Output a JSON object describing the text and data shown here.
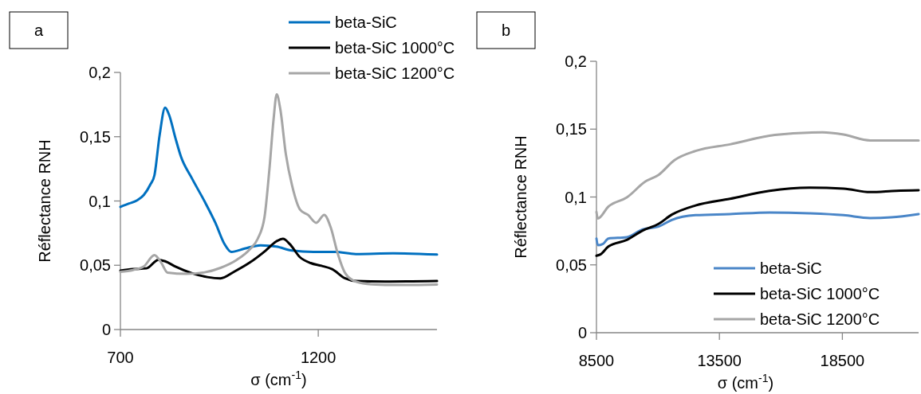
{
  "chart_data": [
    {
      "type": "line",
      "title": "a",
      "xlabel": "σ (cm$^{-1}$)",
      "ylabel": "Réflectance RNH",
      "xlim": [
        700,
        1500
      ],
      "xticks": [
        700,
        1200
      ],
      "ylim": [
        0,
        0.2
      ],
      "yticks": [
        {
          "value": 0,
          "label": "0"
        },
        {
          "value": 0.05,
          "label": "0,05"
        },
        {
          "value": 0.1,
          "label": "0,1"
        },
        {
          "value": 0.15,
          "label": "0,15"
        },
        {
          "value": 0.2,
          "label": "0,2"
        }
      ],
      "legend": "top right",
      "grid": false,
      "marker": "none",
      "line_style": "solid",
      "series": [
        {
          "name": "beta-SiC",
          "color": "#0070c0",
          "x": [
            700,
            722,
            742,
            759,
            776,
            786,
            799,
            813,
            823,
            839,
            853,
            880,
            913,
            940,
            963,
            980,
            1014,
            1054,
            1094,
            1134,
            1188,
            1242,
            1295,
            1389,
            1500
          ],
          "values": [
            0.0954,
            0.098,
            0.1005,
            0.1046,
            0.113,
            0.12,
            0.151,
            0.1726,
            0.167,
            0.149,
            0.1345,
            0.118,
            0.0995,
            0.083,
            0.0665,
            0.0604,
            0.063,
            0.0655,
            0.0645,
            0.0614,
            0.0604,
            0.0604,
            0.0587,
            0.0593,
            0.0583
          ]
        },
        {
          "name": "beta-SiC 1000°C",
          "color": "#000000",
          "x": [
            700,
            732,
            766,
            796,
            813,
            839,
            880,
            920,
            953,
            987,
            1027,
            1067,
            1094,
            1111,
            1128,
            1154,
            1181,
            1208,
            1235,
            1268,
            1295,
            1369,
            1500
          ],
          "values": [
            0.0459,
            0.047,
            0.0476,
            0.0542,
            0.0531,
            0.049,
            0.0439,
            0.0408,
            0.0398,
            0.0449,
            0.0521,
            0.0614,
            0.0686,
            0.0706,
            0.0665,
            0.0562,
            0.0517,
            0.0496,
            0.047,
            0.0398,
            0.0377,
            0.0373,
            0.0377
          ]
        },
        {
          "name": "beta-SiC 1200°C",
          "color": "#a6a6a6",
          "x": [
            700,
            732,
            759,
            786,
            803,
            819,
            866,
            913,
            953,
            994,
            1027,
            1047,
            1064,
            1077,
            1087,
            1095,
            1104,
            1118,
            1134,
            1154,
            1174,
            1195,
            1215,
            1232,
            1248,
            1268,
            1295,
            1335,
            1402,
            1500
          ],
          "values": [
            0.0449,
            0.0463,
            0.049,
            0.0579,
            0.0521,
            0.0443,
            0.0433,
            0.0445,
            0.048,
            0.0542,
            0.0624,
            0.0706,
            0.0871,
            0.1263,
            0.1633,
            0.1829,
            0.1716,
            0.1366,
            0.1118,
            0.0933,
            0.0892,
            0.083,
            0.0892,
            0.0789,
            0.0604,
            0.0439,
            0.0373,
            0.0352,
            0.0346,
            0.035
          ]
        }
      ]
    },
    {
      "type": "line",
      "title": "b",
      "xlabel": "σ (cm$^{-1}$)",
      "ylabel": "Réflectance RNH",
      "xlim": [
        8500,
        21600
      ],
      "xticks": [
        8500,
        13500,
        18500
      ],
      "ylim": [
        0,
        0.2
      ],
      "yticks": [
        {
          "value": 0,
          "label": "0"
        },
        {
          "value": 0.05,
          "label": "0,05"
        },
        {
          "value": 0.1,
          "label": "0,1"
        },
        {
          "value": 0.15,
          "label": "0,15"
        },
        {
          "value": 0.2,
          "label": "0,2"
        }
      ],
      "legend": "bottom right",
      "grid": false,
      "marker": "none",
      "line_style": "solid",
      "series": [
        {
          "name": "beta-SiC",
          "color": "#4a86c8",
          "x": [
            8500,
            8554,
            8769,
            8984,
            9736,
            10381,
            11026,
            11564,
            12531,
            13929,
            15541,
            17154,
            18551,
            19626,
            20486,
            21600
          ],
          "values": [
            0.0694,
            0.0645,
            0.0655,
            0.0694,
            0.0704,
            0.0762,
            0.0782,
            0.0831,
            0.0866,
            0.0874,
            0.0886,
            0.088,
            0.0866,
            0.0845,
            0.085,
            0.0874
          ]
        },
        {
          "name": "beta-SiC 1000°C",
          "color": "#000000",
          "x": [
            8500,
            8661,
            8984,
            9736,
            10381,
            11026,
            11564,
            12531,
            13929,
            15541,
            17154,
            18551,
            19626,
            20701,
            21600
          ],
          "values": [
            0.0567,
            0.0577,
            0.0635,
            0.0684,
            0.0753,
            0.0802,
            0.087,
            0.0938,
            0.0987,
            0.1046,
            0.1069,
            0.1062,
            0.1036,
            0.1046,
            0.105
          ]
        },
        {
          "name": "beta-SiC 1200°C",
          "color": "#a6a6a6",
          "x": [
            8500,
            8554,
            8984,
            9736,
            10489,
            11026,
            11671,
            12531,
            13929,
            15756,
            17691,
            18551,
            19626,
            20701,
            21600
          ],
          "values": [
            0.089,
            0.0841,
            0.0929,
            0.0997,
            0.1114,
            0.1163,
            0.1271,
            0.1339,
            0.1388,
            0.1457,
            0.1476,
            0.146,
            0.1417,
            0.1417,
            0.1417
          ]
        }
      ]
    }
  ]
}
